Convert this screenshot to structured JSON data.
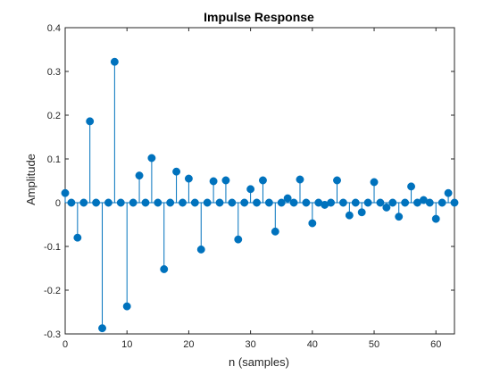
{
  "chart_data": {
    "type": "stem",
    "title": "Impulse Response",
    "xlabel": "n (samples)",
    "ylabel": "Amplitude",
    "xlim": [
      0,
      63
    ],
    "ylim": [
      -0.3,
      0.4
    ],
    "xticks": [
      0,
      10,
      20,
      30,
      40,
      50,
      60
    ],
    "xtick_labels": [
      "0",
      "10",
      "20",
      "30",
      "40",
      "50",
      "60"
    ],
    "yticks": [
      -0.3,
      -0.2,
      -0.1,
      0,
      0.1,
      0.2,
      0.3,
      0.4
    ],
    "ytick_labels": [
      "-0.3",
      "-0.2",
      "-0.1",
      "0",
      "0.1",
      "0.2",
      "0.3",
      "0.4"
    ],
    "grid": false,
    "color": "#0072BD",
    "series": [
      {
        "x": [
          0,
          1,
          2,
          3,
          4,
          5,
          6,
          7,
          8,
          9,
          10,
          11,
          12,
          13,
          14,
          15,
          16,
          17,
          18,
          19,
          20,
          21,
          22,
          23,
          24,
          25,
          26,
          27,
          28,
          29,
          30,
          31,
          32,
          33,
          34,
          35,
          36,
          37,
          38,
          39,
          40,
          41,
          42,
          43,
          44,
          45,
          46,
          47,
          48,
          49,
          50,
          51,
          52,
          53,
          54,
          55,
          56,
          57,
          58,
          59,
          60,
          61,
          62,
          63
        ],
        "values": [
          0.022,
          0,
          -0.08,
          0,
          0.186,
          0,
          -0.287,
          0,
          0.322,
          0,
          -0.237,
          0,
          0.062,
          0,
          0.102,
          0,
          -0.152,
          0,
          0.071,
          0,
          0.055,
          0,
          -0.107,
          0,
          0.049,
          0,
          0.051,
          0,
          -0.084,
          0,
          0.031,
          0,
          0.051,
          0,
          -0.066,
          0,
          0.01,
          0,
          0.053,
          0,
          -0.047,
          0,
          -0.005,
          0,
          0.051,
          0,
          -0.029,
          0,
          -0.022,
          0,
          0.047,
          0,
          -0.011,
          0,
          -0.032,
          0,
          0.037,
          0,
          0.006,
          0,
          -0.037,
          0,
          0.022,
          0
        ]
      }
    ]
  }
}
